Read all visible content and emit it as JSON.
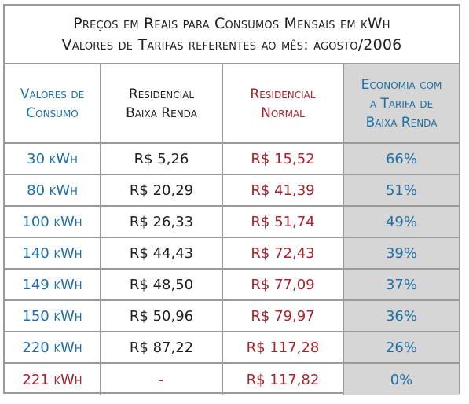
{
  "title": {
    "line1": "Preços em Reais para Consumos Mensais em kWh",
    "line2": "Valores de Tarifas referentes ao mês: agosto/2006"
  },
  "headers": {
    "consumo": "Valores de\nConsumo",
    "residencial": "Residencial\nBaixa Renda",
    "normal": "Residencial\nNormal",
    "economia": "Economia com\na Tarifa de\nBaixa Renda"
  },
  "rows": [
    {
      "consumo": "30 kWh",
      "residencial": "R$ 5,26",
      "normal": "R$ 15,52",
      "economia": "66%"
    },
    {
      "consumo": "80 kWh",
      "residencial": "R$ 20,29",
      "normal": "R$ 41,39",
      "economia": "51%"
    },
    {
      "consumo": "100 kWh",
      "residencial": "R$ 26,33",
      "normal": "R$ 51,74",
      "economia": "49%"
    },
    {
      "consumo": "140 kWh",
      "residencial": "R$ 44,43",
      "normal": "R$ 72,43",
      "economia": "39%"
    },
    {
      "consumo": "149 kWh",
      "residencial": "R$ 48,50",
      "normal": "R$ 77,09",
      "economia": "37%"
    },
    {
      "consumo": "150 kWh",
      "residencial": "R$ 50,96",
      "normal": "R$ 79,97",
      "economia": "36%"
    },
    {
      "consumo": "220 kWh",
      "residencial": "R$ 87,22",
      "normal": "R$ 117,28",
      "economia": "26%"
    },
    {
      "consumo": "221 kWh",
      "residencial": "-",
      "normal": "R$ 117,82",
      "economia": "0%"
    }
  ],
  "colors": {
    "blue": "#1d6fa5",
    "red": "#a5232c",
    "text": "#1f1f1f",
    "shade": "#d6d6d6",
    "border": "#9a9a9a"
  }
}
